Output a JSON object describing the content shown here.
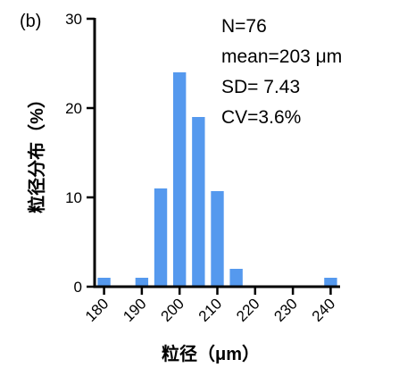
{
  "chart_data": {
    "type": "bar",
    "panel_label": "(b)",
    "xlabel": "粒径（μm）",
    "ylabel": "粒径分布（%）",
    "ylim": [
      0,
      30
    ],
    "yticks": [
      0,
      10,
      20,
      30
    ],
    "xlim": [
      177.5,
      242.5
    ],
    "xtick_values": [
      180,
      190,
      200,
      210,
      220,
      230,
      240
    ],
    "xtick_labels": [
      "180",
      "190",
      "200",
      "210",
      "220",
      "230",
      "240"
    ],
    "bar_width": 3.4,
    "bars": [
      {
        "x": 180,
        "value": 1.0
      },
      {
        "x": 190,
        "value": 1.0
      },
      {
        "x": 195,
        "value": 11.0
      },
      {
        "x": 200,
        "value": 24.0
      },
      {
        "x": 205,
        "value": 19.0
      },
      {
        "x": 210,
        "value": 10.7
      },
      {
        "x": 215,
        "value": 2.0
      },
      {
        "x": 240,
        "value": 1.0
      }
    ],
    "bar_color": "#5599EE",
    "annotations": [
      "N=76",
      "mean=203 μm",
      "SD= 7.43",
      "CV=3.6%"
    ],
    "grid": false
  }
}
